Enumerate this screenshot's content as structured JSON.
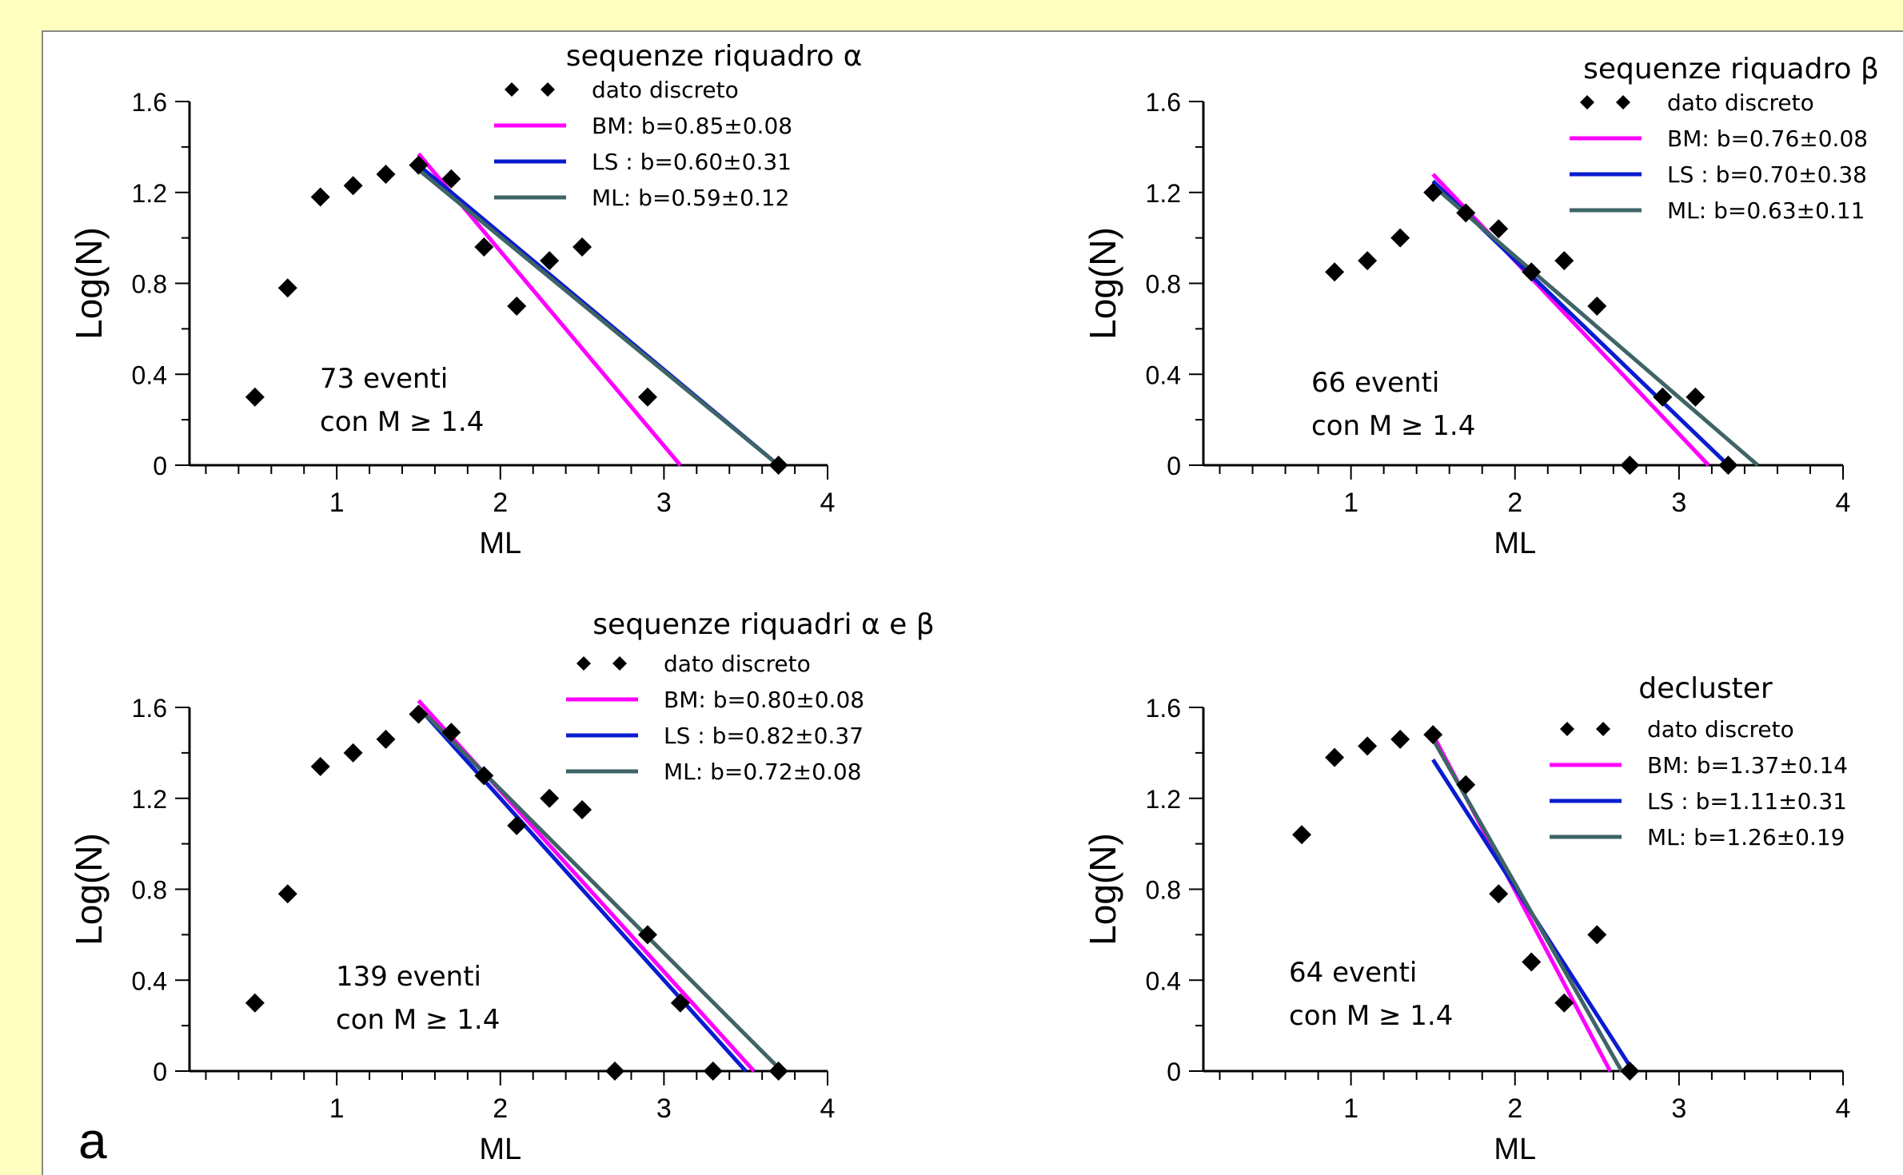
{
  "panel_letter": "a",
  "chart_data": [
    {
      "type": "scatter",
      "title": "sequenze riquadro α",
      "xlabel": "ML",
      "ylabel": "Log(N)",
      "xlim": [
        0.1,
        4
      ],
      "ylim": [
        0,
        1.6
      ],
      "xticks": [
        "1",
        "2",
        "3",
        "4"
      ],
      "yticks": [
        "0",
        "0.4",
        "0.8",
        "1.2",
        "1.6"
      ],
      "annotation": [
        "73 eventi",
        "con M ≥ 1.4"
      ],
      "points": [
        [
          0.5,
          0.3
        ],
        [
          0.7,
          0.78
        ],
        [
          0.9,
          1.18
        ],
        [
          1.1,
          1.23
        ],
        [
          1.3,
          1.28
        ],
        [
          1.5,
          1.32
        ],
        [
          1.7,
          1.26
        ],
        [
          1.9,
          0.96
        ],
        [
          2.1,
          0.7
        ],
        [
          2.3,
          0.9
        ],
        [
          2.5,
          0.96
        ],
        [
          2.9,
          0.3
        ],
        [
          3.7,
          0
        ]
      ],
      "legend": [
        {
          "name": "dato discreto",
          "color": "#000000",
          "kind": "marker"
        },
        {
          "name": "BM:  b=0.85±0.08",
          "color": "#ff00ff",
          "kind": "line",
          "from": [
            1.5,
            1.37
          ],
          "to": [
            3.1,
            0
          ]
        },
        {
          "name": "LS :  b=0.60±0.31",
          "color": "#0a1cd0",
          "kind": "line",
          "from": [
            1.5,
            1.32
          ],
          "to": [
            3.7,
            0
          ]
        },
        {
          "name": "ML:  b=0.59±0.12",
          "color": "#3f6466",
          "kind": "line",
          "from": [
            1.5,
            1.3
          ],
          "to": [
            3.7,
            0
          ]
        }
      ]
    },
    {
      "type": "scatter",
      "title": "sequenze riquadro β",
      "xlabel": "ML",
      "ylabel": "Log(N)",
      "xlim": [
        0.1,
        4
      ],
      "ylim": [
        0,
        1.6
      ],
      "xticks": [
        "1",
        "2",
        "3",
        "4"
      ],
      "yticks": [
        "0",
        "0.4",
        "0.8",
        "1.2",
        "1.6"
      ],
      "annotation": [
        "66 eventi",
        "con M ≥ 1.4"
      ],
      "points": [
        [
          0.9,
          0.85
        ],
        [
          1.1,
          0.9
        ],
        [
          1.3,
          1.0
        ],
        [
          1.5,
          1.2
        ],
        [
          1.7,
          1.11
        ],
        [
          1.9,
          1.04
        ],
        [
          2.1,
          0.85
        ],
        [
          2.3,
          0.9
        ],
        [
          2.5,
          0.7
        ],
        [
          2.7,
          0
        ],
        [
          2.9,
          0.3
        ],
        [
          3.1,
          0.3
        ],
        [
          3.3,
          0
        ]
      ],
      "legend": [
        {
          "name": "dato discreto",
          "color": "#000000",
          "kind": "marker"
        },
        {
          "name": "BM:  b=0.76±0.08",
          "color": "#ff00ff",
          "kind": "line",
          "from": [
            1.5,
            1.28
          ],
          "to": [
            3.18,
            0
          ]
        },
        {
          "name": "LS :  b=0.70±0.38",
          "color": "#0a1cd0",
          "kind": "line",
          "from": [
            1.5,
            1.25
          ],
          "to": [
            3.3,
            0
          ]
        },
        {
          "name": "ML:  b=0.63±0.11",
          "color": "#3f6466",
          "kind": "line",
          "from": [
            1.5,
            1.23
          ],
          "to": [
            3.48,
            0
          ]
        }
      ]
    },
    {
      "type": "scatter",
      "title": "sequenze riquadri α e β",
      "xlabel": "ML",
      "ylabel": "Log(N)",
      "xlim": [
        0.1,
        4
      ],
      "ylim": [
        0,
        1.6
      ],
      "xticks": [
        "1",
        "2",
        "3",
        "4"
      ],
      "yticks": [
        "0",
        "0.4",
        "0.8",
        "1.2",
        "1.6"
      ],
      "annotation": [
        "139 eventi",
        "con M ≥ 1.4"
      ],
      "points": [
        [
          0.5,
          0.3
        ],
        [
          0.7,
          0.78
        ],
        [
          0.9,
          1.34
        ],
        [
          1.1,
          1.4
        ],
        [
          1.3,
          1.46
        ],
        [
          1.5,
          1.57
        ],
        [
          1.7,
          1.49
        ],
        [
          1.9,
          1.3
        ],
        [
          2.1,
          1.08
        ],
        [
          2.3,
          1.2
        ],
        [
          2.5,
          1.15
        ],
        [
          2.7,
          0
        ],
        [
          2.9,
          0.6
        ],
        [
          3.1,
          0.3
        ],
        [
          3.3,
          0
        ],
        [
          3.7,
          0
        ]
      ],
      "legend": [
        {
          "name": "dato discreto",
          "color": "#000000",
          "kind": "marker"
        },
        {
          "name": "BM:  b=0.80±0.08",
          "color": "#ff00ff",
          "kind": "line",
          "from": [
            1.5,
            1.63
          ],
          "to": [
            3.55,
            0
          ]
        },
        {
          "name": "LS :  b=0.82±0.37",
          "color": "#0a1cd0",
          "kind": "line",
          "from": [
            1.5,
            1.6
          ],
          "to": [
            3.5,
            0
          ]
        },
        {
          "name": "ML:  b=0.72±0.08",
          "color": "#3f6466",
          "kind": "line",
          "from": [
            1.5,
            1.6
          ],
          "to": [
            3.72,
            0
          ]
        }
      ]
    },
    {
      "type": "scatter",
      "title": "decluster",
      "xlabel": "ML",
      "ylabel": "Log(N)",
      "xlim": [
        0.1,
        4
      ],
      "ylim": [
        0,
        1.6
      ],
      "xticks": [
        "1",
        "2",
        "3",
        "4"
      ],
      "yticks": [
        "0",
        "0.4",
        "0.8",
        "1.2",
        "1.6"
      ],
      "annotation": [
        "64 eventi",
        "con M ≥ 1.4"
      ],
      "points": [
        [
          0.7,
          1.04
        ],
        [
          0.9,
          1.38
        ],
        [
          1.1,
          1.43
        ],
        [
          1.3,
          1.46
        ],
        [
          1.5,
          1.48
        ],
        [
          1.7,
          1.26
        ],
        [
          1.9,
          0.78
        ],
        [
          2.1,
          0.48
        ],
        [
          2.3,
          0.3
        ],
        [
          2.5,
          0.6
        ],
        [
          2.7,
          0
        ]
      ],
      "legend": [
        {
          "name": "dato discreto",
          "color": "#000000",
          "kind": "marker"
        },
        {
          "name": "BM:  b=1.37±0.14",
          "color": "#ff00ff",
          "kind": "line",
          "from": [
            1.5,
            1.48
          ],
          "to": [
            2.58,
            0
          ]
        },
        {
          "name": "LS :  b=1.11±0.31",
          "color": "#0a1cd0",
          "kind": "line",
          "from": [
            1.5,
            1.37
          ],
          "to": [
            2.72,
            0
          ]
        },
        {
          "name": "ML:  b=1.26±0.19",
          "color": "#3f6466",
          "kind": "line",
          "from": [
            1.5,
            1.46
          ],
          "to": [
            2.65,
            0
          ]
        }
      ]
    }
  ]
}
